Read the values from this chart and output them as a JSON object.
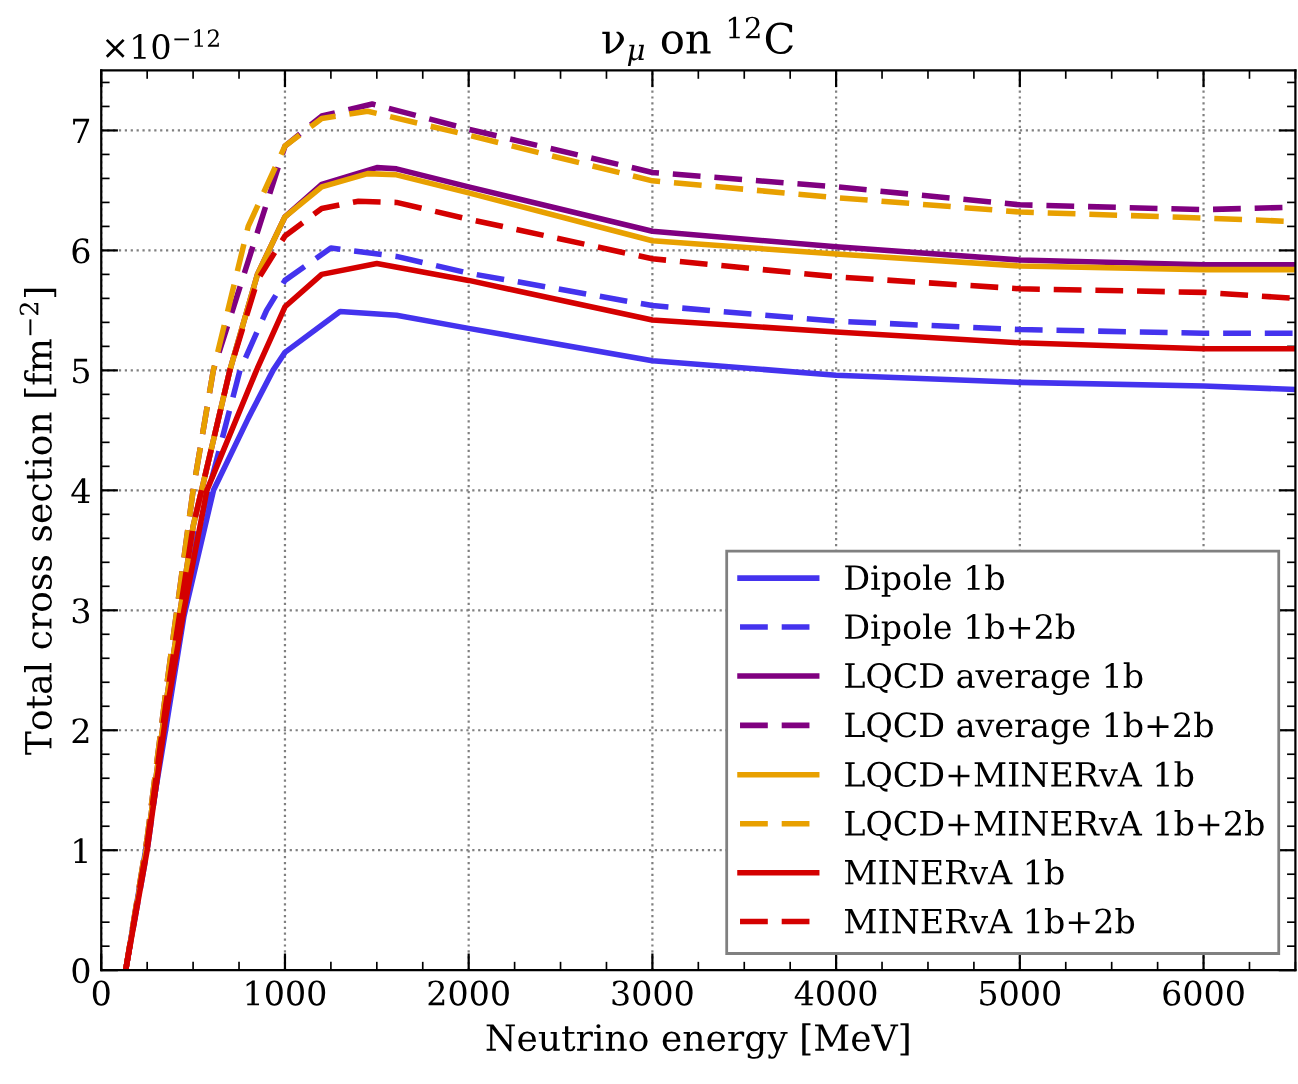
{
  "chart_data": {
    "type": "line",
    "title": "ν$_{μ}$ on $^{12}$C",
    "xlabel": "Neutrino energy [MeV]",
    "ylabel": "Total cross section [fm$^{−2}$]",
    "annotations": [
      "×10$^{−12}$"
    ],
    "xlim": [
      0,
      6500
    ],
    "xticks": [
      0,
      1000,
      2000,
      3000,
      4000,
      5000,
      6000
    ],
    "ylim": [
      0,
      7.5
    ],
    "yticks": [
      0,
      1,
      2,
      3,
      4,
      5,
      6,
      7
    ],
    "grid": true,
    "legend": "bottom right",
    "marker": "none",
    "series": [
      {
        "name": "Dipole 1b",
        "color": "#4433ee",
        "line_style": "solid",
        "x": [
          133,
          350,
          450,
          611,
          800,
          935,
          1000,
          1300,
          1607,
          2000,
          3000,
          4000,
          5000,
          6000,
          6500
        ],
        "values": [
          0,
          2.0,
          2.95,
          4.0,
          4.6,
          5.0,
          5.15,
          5.49,
          5.46,
          5.35,
          5.08,
          4.96,
          4.9,
          4.87,
          4.84
        ]
      },
      {
        "name": "Dipole 1b+2b",
        "color": "#4433ee",
        "line_style": "dashed",
        "x": [
          133,
          250,
          350,
          500,
          755,
          900,
          1000,
          1250,
          1607,
          2000,
          3000,
          4000,
          5000,
          6000,
          6500
        ],
        "values": [
          0,
          1.0,
          2.1,
          3.5,
          5.0,
          5.5,
          5.75,
          6.02,
          5.95,
          5.81,
          5.54,
          5.41,
          5.34,
          5.31,
          5.31
        ]
      },
      {
        "name": "LQCD average 1b",
        "color": "#800080",
        "line_style": "solid",
        "x": [
          133,
          250,
          350,
          500,
          700,
          850,
          1000,
          1200,
          1500,
          1607,
          2000,
          3000,
          4000,
          5000,
          6000,
          6500
        ],
        "values": [
          0,
          1.05,
          2.2,
          3.7,
          5.0,
          5.8,
          6.28,
          6.55,
          6.69,
          6.68,
          6.53,
          6.16,
          6.03,
          5.92,
          5.88,
          5.88
        ]
      },
      {
        "name": "LQCD average 1b+2b",
        "color": "#800080",
        "line_style": "dashed",
        "x": [
          133,
          250,
          350,
          500,
          610,
          1000,
          1200,
          1475,
          2000,
          3000,
          4000,
          5000,
          6000,
          6500
        ],
        "values": [
          0,
          1.1,
          2.3,
          4.0,
          5.0,
          6.87,
          7.12,
          7.22,
          7.01,
          6.65,
          6.53,
          6.38,
          6.34,
          6.36
        ]
      },
      {
        "name": "LQCD+MINERvA 1b",
        "color": "#e8a000",
        "line_style": "solid",
        "x": [
          133,
          250,
          350,
          500,
          700,
          850,
          1000,
          1200,
          1450,
          1607,
          2000,
          3000,
          4000,
          5000,
          6000,
          6500
        ],
        "values": [
          0,
          1.05,
          2.2,
          3.7,
          5.0,
          5.8,
          6.28,
          6.53,
          6.64,
          6.63,
          6.48,
          6.08,
          5.97,
          5.87,
          5.84,
          5.84
        ]
      },
      {
        "name": "LQCD+MINERvA 1b+2b",
        "color": "#e8a000",
        "line_style": "dashed",
        "x": [
          133,
          250,
          350,
          500,
          610,
          800,
          1000,
          1200,
          1450,
          2000,
          3000,
          4000,
          5000,
          6000,
          6500
        ],
        "values": [
          0,
          1.1,
          2.3,
          4.0,
          5.0,
          6.2,
          6.87,
          7.1,
          7.16,
          6.96,
          6.58,
          6.44,
          6.32,
          6.27,
          6.24
        ]
      },
      {
        "name": "MINERvA 1b",
        "color": "#d40000",
        "line_style": "solid",
        "x": [
          133,
          250,
          350,
          450,
          575,
          845,
          1000,
          1200,
          1500,
          2000,
          3000,
          4000,
          5000,
          6000,
          6500
        ],
        "values": [
          0,
          1.0,
          2.1,
          3.0,
          4.0,
          5.0,
          5.53,
          5.8,
          5.89,
          5.75,
          5.42,
          5.32,
          5.23,
          5.18,
          5.18
        ]
      },
      {
        "name": "MINERvA 1b+2b",
        "color": "#d40000",
        "line_style": "dashed",
        "x": [
          133,
          250,
          350,
          500,
          700,
          850,
          1000,
          1200,
          1400,
          1607,
          2000,
          3000,
          4000,
          5000,
          6000,
          6500
        ],
        "values": [
          0,
          1.05,
          2.2,
          3.7,
          5.0,
          5.75,
          6.12,
          6.35,
          6.41,
          6.4,
          6.26,
          5.93,
          5.78,
          5.68,
          5.65,
          5.6
        ]
      }
    ]
  }
}
